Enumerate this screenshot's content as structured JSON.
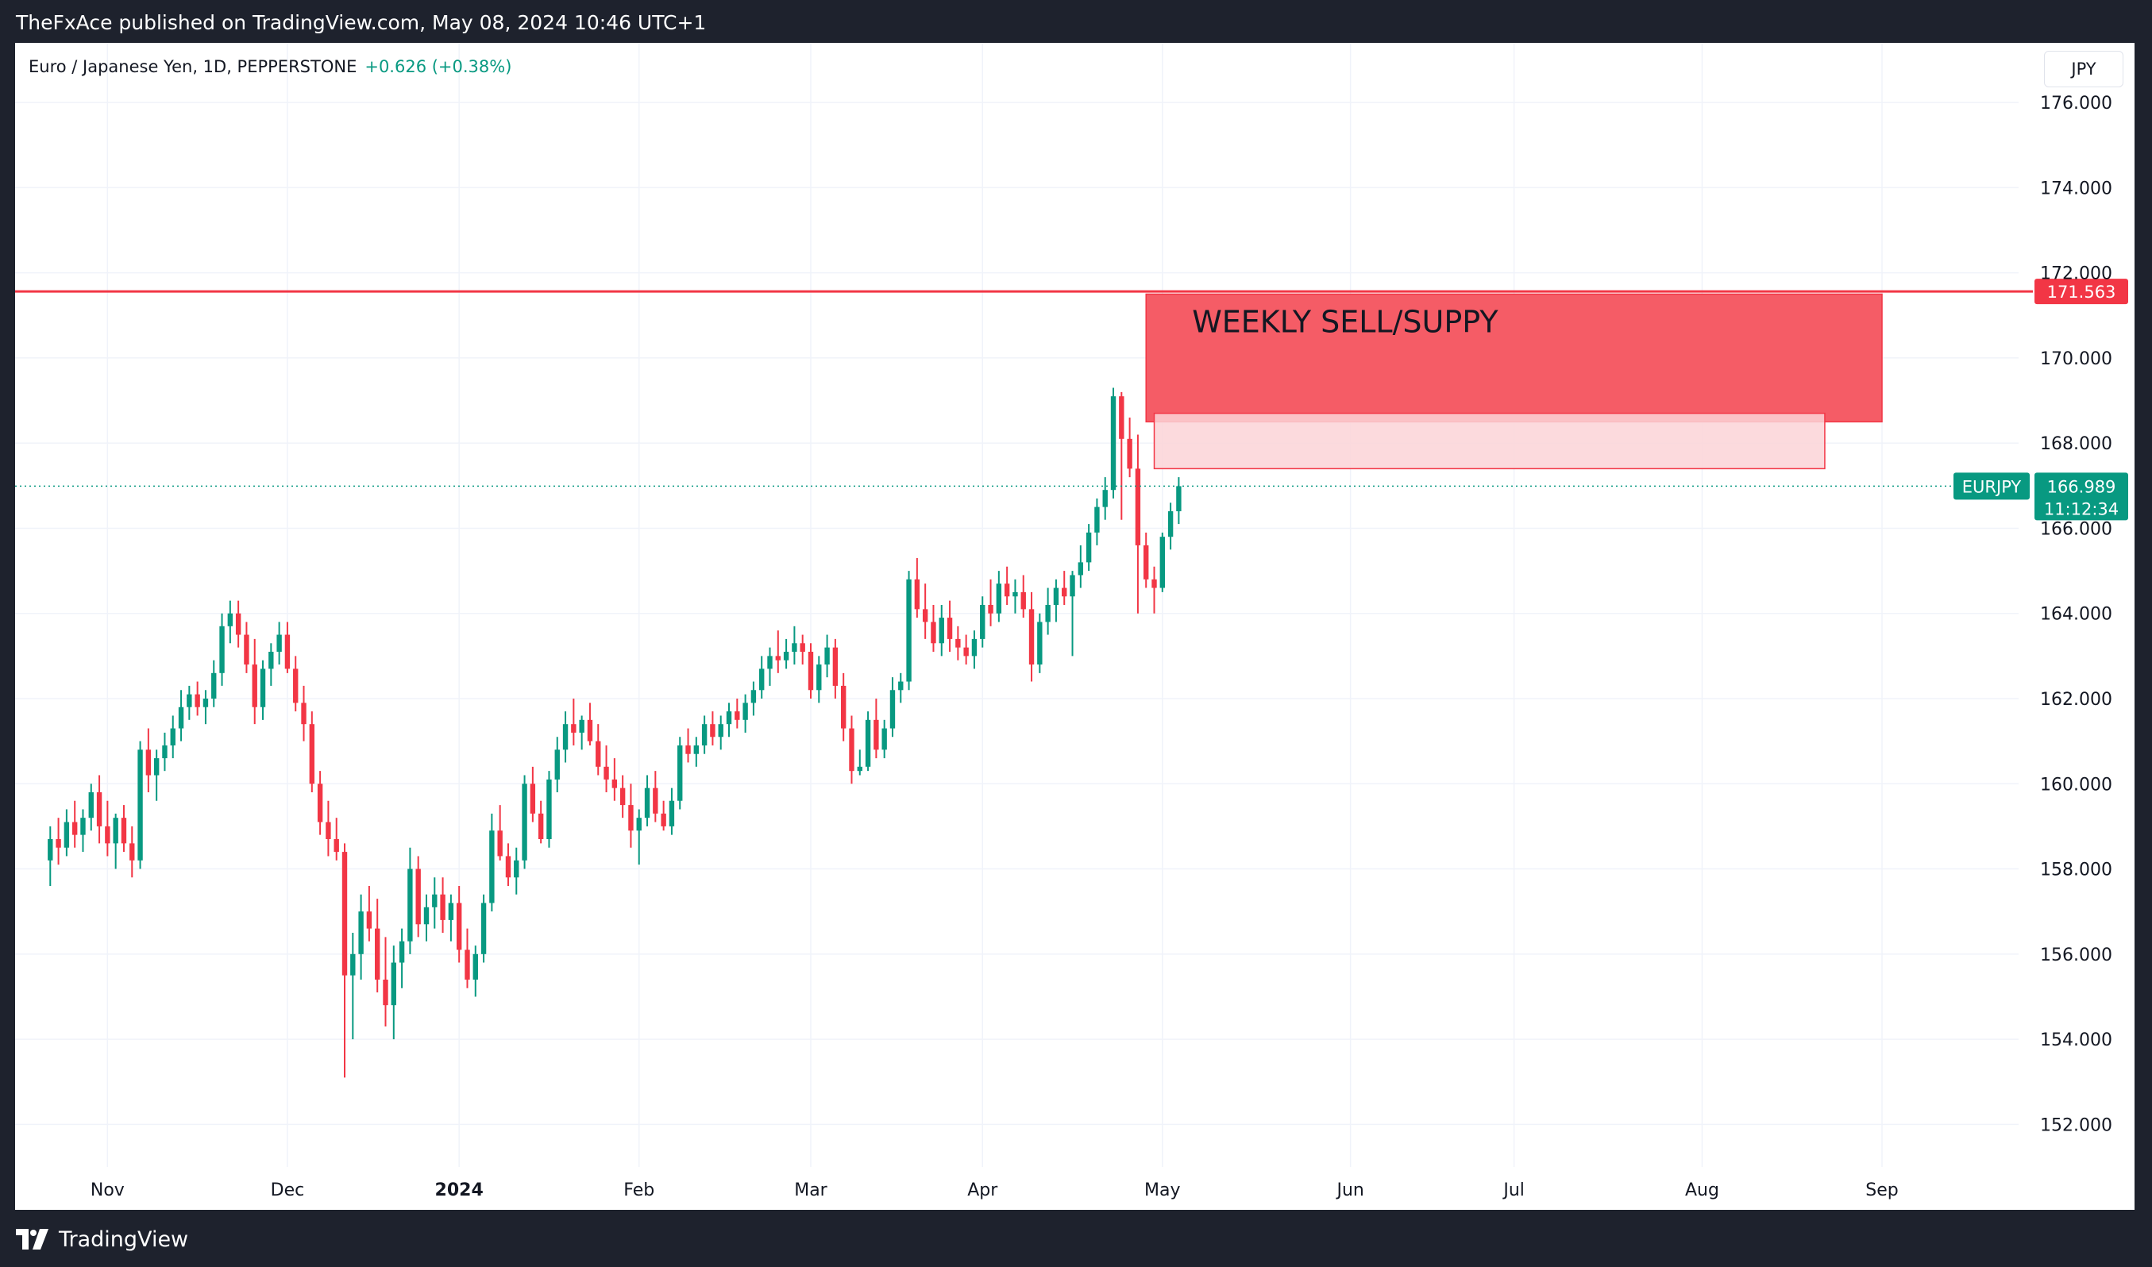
{
  "header": {
    "published": "TheFxAce published on TradingView.com, May 08, 2024 10:46 UTC+1"
  },
  "legend": {
    "symbol_desc": "Euro / Japanese Yen, 1D, PEPPERSTONE",
    "change": "+0.626 (+0.38%)"
  },
  "currency_button": "JPY",
  "footer": {
    "brand": "TradingView"
  },
  "colors": {
    "up": "#089981",
    "down": "#f23645",
    "zone": "#f55c66",
    "zone_light": "#fbd3d7",
    "resistance": "#f23645",
    "grid": "#f0f3fa"
  },
  "chart_data": {
    "type": "candlestick",
    "title": "Euro / Japanese Yen, 1D, PEPPERSTONE",
    "ylim": [
      151.0,
      177.4
    ],
    "y_ticks": [
      "152.000",
      "154.000",
      "156.000",
      "158.000",
      "160.000",
      "162.000",
      "164.000",
      "166.000",
      "168.000",
      "170.000",
      "172.000",
      "174.000",
      "176.000"
    ],
    "y_tick_values": [
      152,
      154,
      156,
      158,
      160,
      162,
      164,
      166,
      168,
      170,
      172,
      174,
      176
    ],
    "x_ticks": [
      {
        "label": "Nov",
        "index": 7,
        "bold": false
      },
      {
        "label": "Dec",
        "index": 29,
        "bold": false
      },
      {
        "label": "2024",
        "index": 50,
        "bold": true
      },
      {
        "label": "Feb",
        "index": 72,
        "bold": false
      },
      {
        "label": "Mar",
        "index": 93,
        "bold": false
      },
      {
        "label": "Apr",
        "index": 114,
        "bold": false
      },
      {
        "label": "May",
        "index": 136,
        "bold": false
      },
      {
        "label": "Jun",
        "index": 159,
        "bold": false
      },
      {
        "label": "Jul",
        "index": 179,
        "bold": false
      },
      {
        "label": "Aug",
        "index": 202,
        "bold": false
      },
      {
        "label": "Sep",
        "index": 224,
        "bold": false
      }
    ],
    "x_index_range": [
      -4.3,
      240.7
    ],
    "resistance": {
      "value": 171.563,
      "label": "171.563"
    },
    "last_price": {
      "symbol": "EURJPY",
      "value": 166.989,
      "label": "166.989",
      "countdown": "11:12:34"
    },
    "zones": [
      {
        "name": "weekly-supply",
        "label": "WEEKLY SELL/SUPPY",
        "x_from": 134,
        "x_to": 224,
        "y_from": 168.5,
        "y_to": 171.5
      },
      {
        "name": "inner-supply",
        "label": "",
        "x_from": 135,
        "x_to": 217,
        "y_from": 167.4,
        "y_to": 168.7
      }
    ],
    "candles": [
      [
        158.2,
        159.0,
        157.6,
        158.7
      ],
      [
        158.7,
        159.2,
        158.1,
        158.5
      ],
      [
        158.5,
        159.4,
        158.3,
        159.1
      ],
      [
        159.1,
        159.6,
        158.5,
        158.8
      ],
      [
        158.8,
        159.4,
        158.4,
        159.2
      ],
      [
        159.2,
        160.0,
        158.9,
        159.8
      ],
      [
        159.8,
        160.2,
        158.6,
        159.0
      ],
      [
        159.0,
        159.6,
        158.3,
        158.6
      ],
      [
        158.6,
        159.3,
        158.0,
        159.2
      ],
      [
        159.2,
        159.5,
        158.4,
        158.6
      ],
      [
        158.6,
        159.0,
        157.8,
        158.2
      ],
      [
        158.2,
        161.0,
        158.0,
        160.8
      ],
      [
        160.8,
        161.3,
        159.8,
        160.2
      ],
      [
        160.2,
        160.8,
        159.6,
        160.6
      ],
      [
        160.6,
        161.2,
        160.3,
        160.9
      ],
      [
        160.9,
        161.6,
        160.6,
        161.3
      ],
      [
        161.3,
        162.2,
        161.0,
        161.8
      ],
      [
        161.8,
        162.3,
        161.5,
        162.1
      ],
      [
        162.1,
        162.4,
        161.6,
        161.8
      ],
      [
        161.8,
        162.2,
        161.4,
        162.0
      ],
      [
        162.0,
        162.9,
        161.8,
        162.6
      ],
      [
        162.6,
        164.0,
        162.3,
        163.7
      ],
      [
        163.7,
        164.3,
        163.3,
        164.0
      ],
      [
        164.0,
        164.3,
        163.2,
        163.5
      ],
      [
        163.5,
        163.8,
        162.6,
        162.8
      ],
      [
        162.8,
        163.4,
        161.4,
        161.8
      ],
      [
        161.8,
        162.9,
        161.5,
        162.7
      ],
      [
        162.7,
        163.3,
        162.3,
        163.1
      ],
      [
        163.1,
        163.8,
        162.8,
        163.5
      ],
      [
        163.5,
        163.8,
        162.6,
        162.7
      ],
      [
        162.7,
        163.0,
        161.7,
        161.9
      ],
      [
        161.9,
        162.3,
        161.0,
        161.4
      ],
      [
        161.4,
        161.7,
        159.8,
        160.0
      ],
      [
        160.0,
        160.3,
        158.8,
        159.1
      ],
      [
        159.1,
        159.6,
        158.3,
        158.7
      ],
      [
        158.7,
        159.2,
        158.2,
        158.4
      ],
      [
        158.4,
        158.6,
        153.1,
        155.5
      ],
      [
        155.5,
        156.5,
        154.0,
        156.0
      ],
      [
        156.0,
        157.4,
        155.4,
        157.0
      ],
      [
        157.0,
        157.6,
        156.3,
        156.6
      ],
      [
        156.6,
        157.3,
        155.1,
        155.4
      ],
      [
        155.4,
        156.4,
        154.3,
        154.8
      ],
      [
        154.8,
        156.2,
        154.0,
        155.8
      ],
      [
        155.8,
        156.6,
        155.2,
        156.3
      ],
      [
        156.3,
        158.5,
        156.0,
        158.0
      ],
      [
        158.0,
        158.3,
        156.4,
        156.7
      ],
      [
        156.7,
        157.4,
        156.3,
        157.1
      ],
      [
        157.1,
        157.8,
        156.6,
        157.4
      ],
      [
        157.4,
        157.8,
        156.5,
        156.8
      ],
      [
        156.8,
        157.4,
        156.3,
        157.2
      ],
      [
        157.2,
        157.6,
        155.8,
        156.1
      ],
      [
        156.1,
        156.6,
        155.2,
        155.4
      ],
      [
        155.4,
        156.2,
        155.0,
        156.0
      ],
      [
        156.0,
        157.4,
        155.8,
        157.2
      ],
      [
        157.2,
        159.3,
        157.0,
        158.9
      ],
      [
        158.9,
        159.5,
        158.2,
        158.3
      ],
      [
        158.3,
        158.6,
        157.6,
        157.8
      ],
      [
        157.8,
        158.5,
        157.4,
        158.2
      ],
      [
        158.2,
        160.2,
        158.0,
        160.0
      ],
      [
        160.0,
        160.4,
        159.1,
        159.3
      ],
      [
        159.3,
        159.6,
        158.6,
        158.7
      ],
      [
        158.7,
        160.3,
        158.5,
        160.1
      ],
      [
        160.1,
        161.1,
        159.8,
        160.8
      ],
      [
        160.8,
        161.7,
        160.5,
        161.4
      ],
      [
        161.4,
        162.0,
        160.9,
        161.2
      ],
      [
        161.2,
        161.6,
        160.8,
        161.5
      ],
      [
        161.5,
        161.9,
        160.9,
        161.0
      ],
      [
        161.0,
        161.4,
        160.2,
        160.4
      ],
      [
        160.4,
        160.9,
        159.8,
        160.1
      ],
      [
        160.1,
        160.6,
        159.6,
        159.9
      ],
      [
        159.9,
        160.2,
        159.2,
        159.5
      ],
      [
        159.5,
        160.0,
        158.5,
        158.9
      ],
      [
        158.9,
        159.4,
        158.1,
        159.2
      ],
      [
        159.2,
        160.2,
        159.0,
        159.9
      ],
      [
        159.9,
        160.3,
        159.1,
        159.3
      ],
      [
        159.3,
        159.6,
        158.9,
        159.0
      ],
      [
        159.0,
        159.9,
        158.8,
        159.6
      ],
      [
        159.6,
        161.1,
        159.4,
        160.9
      ],
      [
        160.9,
        161.3,
        160.5,
        160.7
      ],
      [
        160.7,
        161.1,
        160.4,
        160.9
      ],
      [
        160.9,
        161.6,
        160.7,
        161.4
      ],
      [
        161.4,
        161.7,
        160.9,
        161.1
      ],
      [
        161.1,
        161.6,
        160.8,
        161.4
      ],
      [
        161.4,
        161.9,
        161.1,
        161.7
      ],
      [
        161.7,
        162.0,
        161.3,
        161.5
      ],
      [
        161.5,
        162.1,
        161.2,
        161.9
      ],
      [
        161.9,
        162.4,
        161.6,
        162.2
      ],
      [
        162.2,
        163.0,
        162.0,
        162.7
      ],
      [
        162.7,
        163.2,
        162.3,
        163.0
      ],
      [
        163.0,
        163.6,
        162.6,
        162.9
      ],
      [
        162.9,
        163.4,
        162.7,
        163.1
      ],
      [
        163.1,
        163.7,
        162.8,
        163.3
      ],
      [
        163.3,
        163.5,
        162.8,
        163.1
      ],
      [
        163.1,
        163.3,
        162.0,
        162.2
      ],
      [
        162.2,
        163.0,
        161.9,
        162.8
      ],
      [
        162.8,
        163.5,
        162.5,
        163.2
      ],
      [
        163.2,
        163.4,
        162.0,
        162.3
      ],
      [
        162.3,
        162.6,
        161.0,
        161.3
      ],
      [
        161.3,
        161.6,
        160.0,
        160.3
      ],
      [
        160.3,
        160.8,
        160.2,
        160.4
      ],
      [
        160.4,
        161.7,
        160.3,
        161.5
      ],
      [
        161.5,
        162.0,
        160.6,
        160.8
      ],
      [
        160.8,
        161.5,
        160.6,
        161.3
      ],
      [
        161.3,
        162.5,
        161.1,
        162.2
      ],
      [
        162.2,
        162.6,
        161.9,
        162.4
      ],
      [
        162.4,
        165.0,
        162.2,
        164.8
      ],
      [
        164.8,
        165.3,
        163.9,
        164.1
      ],
      [
        164.1,
        164.7,
        163.4,
        163.8
      ],
      [
        163.8,
        164.2,
        163.1,
        163.3
      ],
      [
        163.3,
        164.2,
        163.0,
        163.9
      ],
      [
        163.9,
        164.3,
        163.1,
        163.4
      ],
      [
        163.4,
        163.7,
        162.9,
        163.2
      ],
      [
        163.2,
        163.5,
        162.8,
        163.0
      ],
      [
        163.0,
        163.6,
        162.7,
        163.4
      ],
      [
        163.4,
        164.4,
        163.2,
        164.2
      ],
      [
        164.2,
        164.8,
        163.7,
        164.0
      ],
      [
        164.0,
        165.0,
        163.8,
        164.7
      ],
      [
        164.7,
        165.1,
        164.2,
        164.4
      ],
      [
        164.4,
        164.8,
        164.0,
        164.5
      ],
      [
        164.5,
        164.9,
        163.9,
        164.1
      ],
      [
        164.1,
        164.5,
        162.4,
        162.8
      ],
      [
        162.8,
        164.0,
        162.6,
        163.8
      ],
      [
        163.8,
        164.6,
        163.5,
        164.2
      ],
      [
        164.2,
        164.8,
        163.8,
        164.6
      ],
      [
        164.6,
        165.0,
        164.2,
        164.4
      ],
      [
        164.4,
        165.0,
        163.0,
        164.9
      ],
      [
        164.9,
        165.6,
        164.6,
        165.2
      ],
      [
        165.2,
        166.1,
        165.0,
        165.9
      ],
      [
        165.9,
        166.7,
        165.6,
        166.5
      ],
      [
        166.5,
        167.2,
        166.2,
        166.9
      ],
      [
        166.9,
        169.3,
        166.7,
        169.1
      ],
      [
        169.1,
        169.2,
        166.2,
        168.1
      ],
      [
        168.1,
        168.6,
        167.2,
        167.4
      ],
      [
        167.4,
        168.2,
        164.0,
        165.6
      ],
      [
        165.6,
        165.9,
        164.6,
        164.8
      ],
      [
        164.8,
        165.1,
        164.0,
        164.6
      ],
      [
        164.6,
        165.9,
        164.5,
        165.8
      ],
      [
        165.8,
        166.6,
        165.5,
        166.4
      ],
      [
        166.4,
        167.2,
        166.1,
        166.989
      ]
    ]
  }
}
